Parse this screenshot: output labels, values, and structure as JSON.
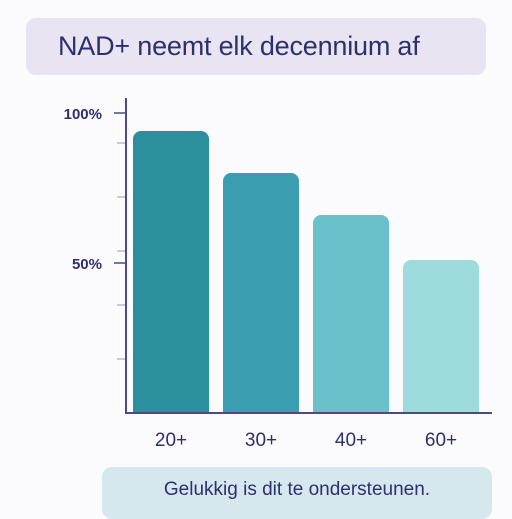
{
  "header": {
    "title": "NAD+ neemt elk decennium af"
  },
  "footer": {
    "note": "Gelukkig is dit te ondersteunen."
  },
  "chart_data": {
    "type": "bar",
    "categories": [
      "20+",
      "30+",
      "40+",
      "60+"
    ],
    "values": [
      94,
      80,
      66,
      51
    ],
    "ylim": [
      0,
      105
    ],
    "yticks": [
      {
        "value": 100,
        "label": "100%"
      },
      {
        "value": 50,
        "label": "50%"
      }
    ],
    "minor_ticks": [
      18,
      36,
      54,
      72,
      90
    ],
    "colors": [
      "#2b8f9e",
      "#3a9eb0",
      "#6ac1c9",
      "#9ddbdc"
    ],
    "axis_color": "#4d4a82",
    "label_color": "#2e2f6e",
    "grid": false
  }
}
